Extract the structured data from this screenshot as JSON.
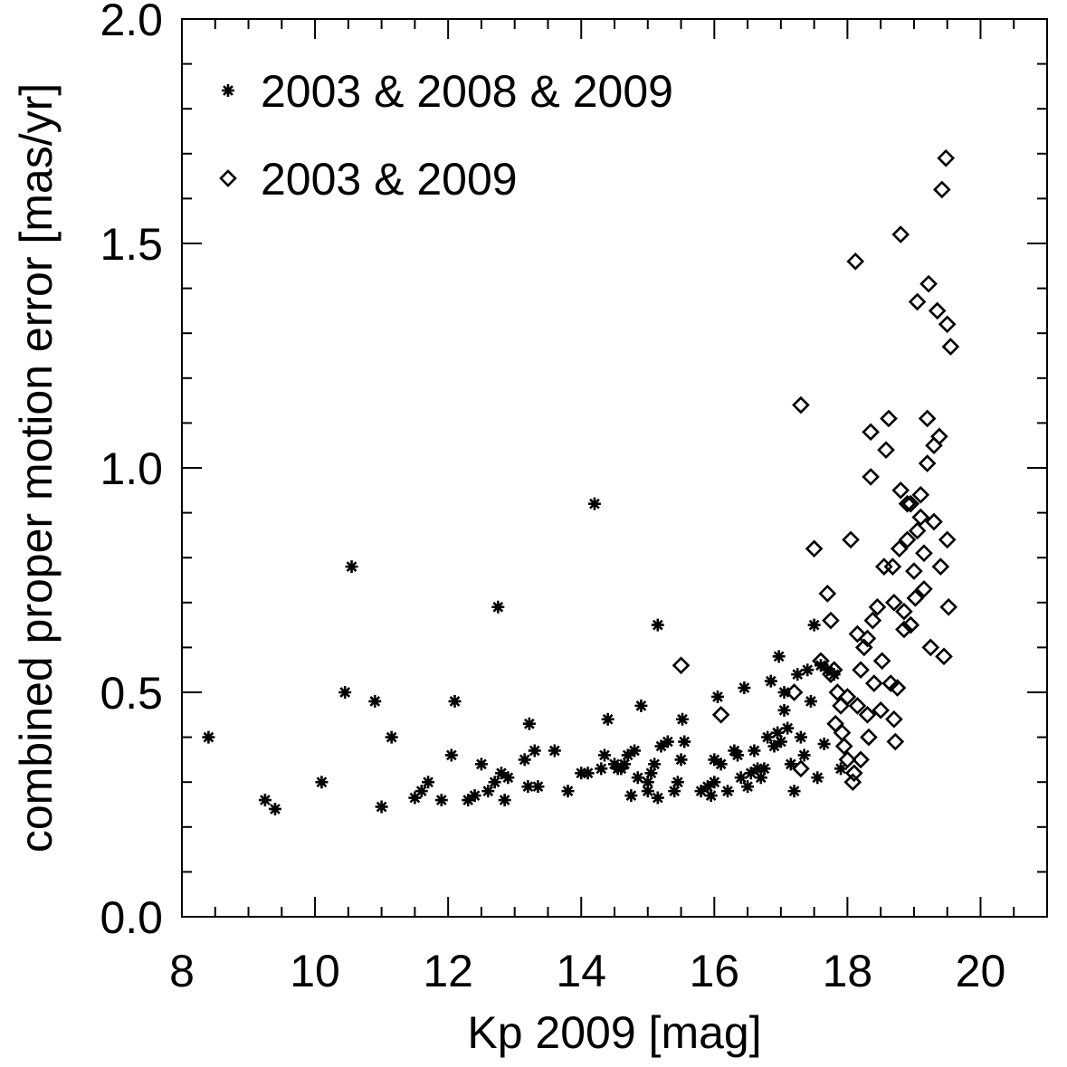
{
  "chart_data": {
    "type": "scatter",
    "xlabel": "Kp 2009 [mag]",
    "ylabel": "combined proper motion error [mas/yr]",
    "xlim": [
      8,
      21
    ],
    "ylim": [
      0.0,
      2.0
    ],
    "xticks": [
      "8",
      "10",
      "12",
      "14",
      "16",
      "18",
      "20"
    ],
    "yticks": [
      "0.0",
      "0.5",
      "1.0",
      "1.5",
      "2.0"
    ],
    "legend_position": "top-left",
    "colors": {
      "marker": "#000000",
      "axes": "#000000",
      "background": "#ffffff"
    },
    "series": [
      {
        "name": "2003 & 2008 & 2009",
        "marker": "asterisk",
        "points": [
          [
            8.4,
            0.4
          ],
          [
            9.25,
            0.26
          ],
          [
            9.4,
            0.24
          ],
          [
            10.1,
            0.3
          ],
          [
            10.45,
            0.5
          ],
          [
            10.55,
            0.78
          ],
          [
            10.9,
            0.48
          ],
          [
            11.0,
            0.245
          ],
          [
            11.15,
            0.4
          ],
          [
            11.5,
            0.265
          ],
          [
            11.6,
            0.28
          ],
          [
            11.7,
            0.3
          ],
          [
            11.9,
            0.26
          ],
          [
            12.05,
            0.36
          ],
          [
            12.1,
            0.48
          ],
          [
            12.3,
            0.26
          ],
          [
            12.4,
            0.27
          ],
          [
            12.5,
            0.34
          ],
          [
            12.6,
            0.28
          ],
          [
            12.7,
            0.3
          ],
          [
            12.75,
            0.69
          ],
          [
            12.8,
            0.32
          ],
          [
            12.85,
            0.26
          ],
          [
            12.9,
            0.31
          ],
          [
            13.15,
            0.35
          ],
          [
            13.2,
            0.29
          ],
          [
            13.22,
            0.43
          ],
          [
            13.3,
            0.37
          ],
          [
            13.35,
            0.29
          ],
          [
            13.6,
            0.37
          ],
          [
            13.8,
            0.28
          ],
          [
            14.0,
            0.32
          ],
          [
            14.1,
            0.32
          ],
          [
            14.2,
            0.92
          ],
          [
            14.3,
            0.33
          ],
          [
            14.35,
            0.36
          ],
          [
            14.4,
            0.44
          ],
          [
            14.5,
            0.34
          ],
          [
            14.55,
            0.33
          ],
          [
            14.6,
            0.33
          ],
          [
            14.65,
            0.34
          ],
          [
            14.7,
            0.36
          ],
          [
            14.75,
            0.27
          ],
          [
            14.8,
            0.37
          ],
          [
            14.85,
            0.31
          ],
          [
            14.9,
            0.47
          ],
          [
            15.0,
            0.28
          ],
          [
            15.0,
            0.3
          ],
          [
            15.05,
            0.32
          ],
          [
            15.1,
            0.34
          ],
          [
            15.15,
            0.265
          ],
          [
            15.15,
            0.65
          ],
          [
            15.2,
            0.38
          ],
          [
            15.3,
            0.39
          ],
          [
            15.4,
            0.28
          ],
          [
            15.45,
            0.3
          ],
          [
            15.5,
            0.35
          ],
          [
            15.52,
            0.44
          ],
          [
            15.55,
            0.39
          ],
          [
            15.8,
            0.28
          ],
          [
            15.9,
            0.29
          ],
          [
            15.95,
            0.27
          ],
          [
            16.0,
            0.35
          ],
          [
            16.0,
            0.3
          ],
          [
            16.05,
            0.49
          ],
          [
            16.1,
            0.34
          ],
          [
            16.2,
            0.28
          ],
          [
            16.3,
            0.37
          ],
          [
            16.35,
            0.36
          ],
          [
            16.4,
            0.31
          ],
          [
            16.45,
            0.51
          ],
          [
            16.5,
            0.29
          ],
          [
            16.55,
            0.32
          ],
          [
            16.6,
            0.37
          ],
          [
            16.65,
            0.33
          ],
          [
            16.7,
            0.31
          ],
          [
            16.75,
            0.33
          ],
          [
            16.8,
            0.4
          ],
          [
            16.85,
            0.525
          ],
          [
            16.9,
            0.38
          ],
          [
            16.95,
            0.41
          ],
          [
            16.97,
            0.58
          ],
          [
            17.0,
            0.39
          ],
          [
            17.05,
            0.46
          ],
          [
            17.05,
            0.5
          ],
          [
            17.1,
            0.42
          ],
          [
            17.15,
            0.34
          ],
          [
            17.2,
            0.28
          ],
          [
            17.25,
            0.54
          ],
          [
            17.3,
            0.4
          ],
          [
            17.35,
            0.36
          ],
          [
            17.4,
            0.55
          ],
          [
            17.45,
            0.48
          ],
          [
            17.5,
            0.65
          ],
          [
            17.55,
            0.31
          ],
          [
            17.6,
            0.56
          ],
          [
            17.65,
            0.385
          ],
          [
            17.7,
            0.55
          ],
          [
            17.8,
            0.54
          ],
          [
            17.9,
            0.33
          ]
        ]
      },
      {
        "name": "2003 & 2009",
        "marker": "diamond",
        "points": [
          [
            15.5,
            0.56
          ],
          [
            16.1,
            0.45
          ],
          [
            17.2,
            0.5
          ],
          [
            17.3,
            0.33
          ],
          [
            17.3,
            1.14
          ],
          [
            17.5,
            0.82
          ],
          [
            17.6,
            0.57
          ],
          [
            17.7,
            0.72
          ],
          [
            17.75,
            0.54
          ],
          [
            17.75,
            0.66
          ],
          [
            17.8,
            0.55
          ],
          [
            17.82,
            0.43
          ],
          [
            17.85,
            0.5
          ],
          [
            17.9,
            0.47
          ],
          [
            17.92,
            0.41
          ],
          [
            17.95,
            0.38
          ],
          [
            18.0,
            0.49
          ],
          [
            18.0,
            0.35
          ],
          [
            18.05,
            0.84
          ],
          [
            18.08,
            0.3
          ],
          [
            18.1,
            0.32
          ],
          [
            18.12,
            1.46
          ],
          [
            18.15,
            0.47
          ],
          [
            18.15,
            0.63
          ],
          [
            18.2,
            0.55
          ],
          [
            18.2,
            0.35
          ],
          [
            18.25,
            0.6
          ],
          [
            18.3,
            0.45
          ],
          [
            18.3,
            0.62
          ],
          [
            18.32,
            0.4
          ],
          [
            18.35,
            0.98
          ],
          [
            18.35,
            1.08
          ],
          [
            18.38,
            0.66
          ],
          [
            18.4,
            0.52
          ],
          [
            18.45,
            0.69
          ],
          [
            18.5,
            0.46
          ],
          [
            18.52,
            0.57
          ],
          [
            18.55,
            0.78
          ],
          [
            18.58,
            1.04
          ],
          [
            18.62,
            1.11
          ],
          [
            18.65,
            0.52
          ],
          [
            18.68,
            0.78
          ],
          [
            18.7,
            0.7
          ],
          [
            18.7,
            0.44
          ],
          [
            18.72,
            0.39
          ],
          [
            18.75,
            0.51
          ],
          [
            18.78,
            0.82
          ],
          [
            18.8,
            1.52
          ],
          [
            18.8,
            0.95
          ],
          [
            18.85,
            0.64
          ],
          [
            18.85,
            0.68
          ],
          [
            18.9,
            0.92
          ],
          [
            18.9,
            0.84
          ],
          [
            18.95,
            0.92
          ],
          [
            18.95,
            0.65
          ],
          [
            19.0,
            0.77
          ],
          [
            19.02,
            0.71
          ],
          [
            19.05,
            0.86
          ],
          [
            19.05,
            1.37
          ],
          [
            19.1,
            0.89
          ],
          [
            19.1,
            0.94
          ],
          [
            19.15,
            0.73
          ],
          [
            19.15,
            0.81
          ],
          [
            19.2,
            1.01
          ],
          [
            19.2,
            1.11
          ],
          [
            19.22,
            1.41
          ],
          [
            19.25,
            0.6
          ],
          [
            19.3,
            1.05
          ],
          [
            19.3,
            0.88
          ],
          [
            19.35,
            1.35
          ],
          [
            19.38,
            1.07
          ],
          [
            19.4,
            0.78
          ],
          [
            19.42,
            1.62
          ],
          [
            19.45,
            0.58
          ],
          [
            19.48,
            1.69
          ],
          [
            19.5,
            0.84
          ],
          [
            19.5,
            1.32
          ],
          [
            19.52,
            0.69
          ],
          [
            19.55,
            1.27
          ]
        ]
      }
    ]
  }
}
